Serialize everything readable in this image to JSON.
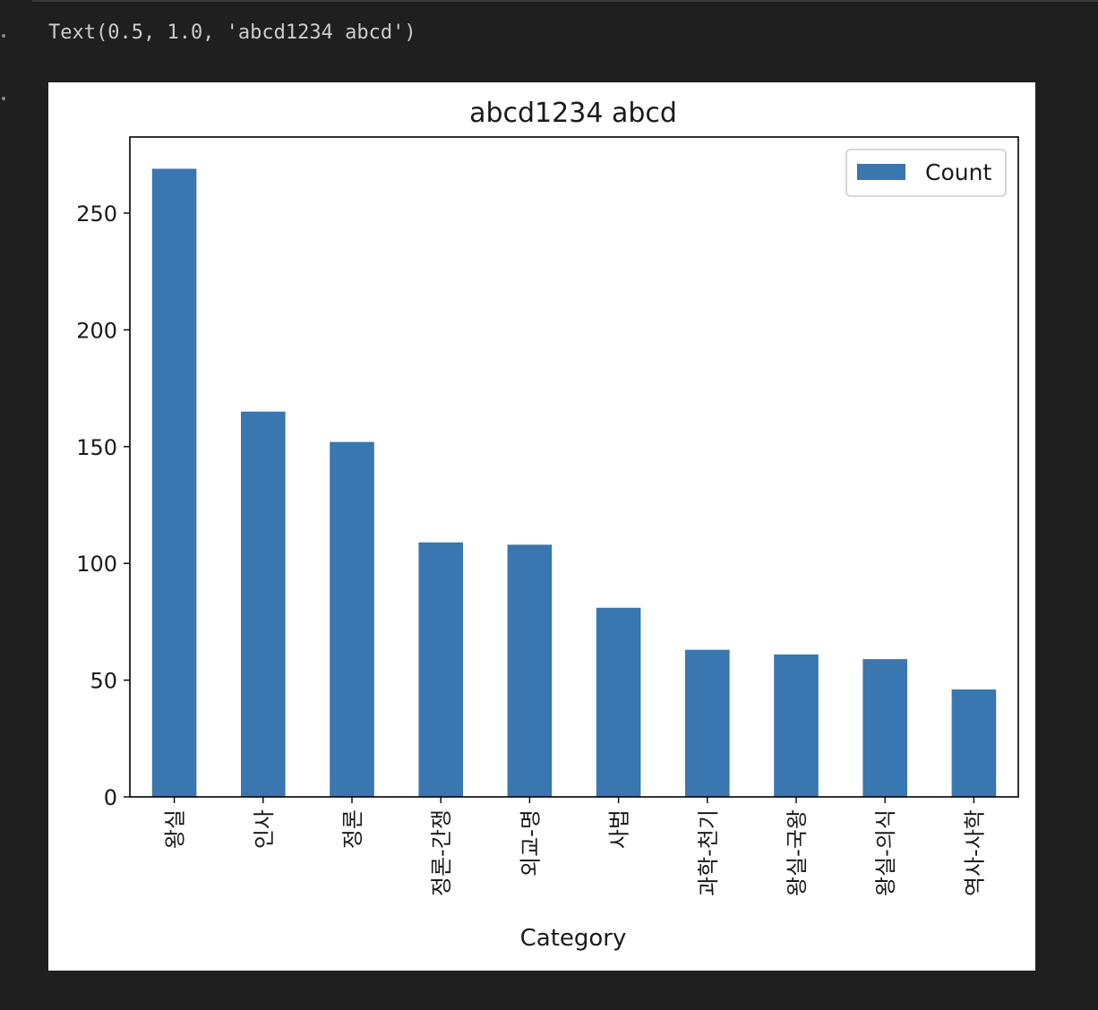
{
  "cell_output": {
    "text_repr": "Text(0.5, 1.0, 'abcd1234 abcd')"
  },
  "colors": {
    "bar": "#3a76b0",
    "axis": "#000000",
    "legend_border": "#cccccc",
    "cell_background": "#1f1f1f",
    "figure_background": "#ffffff"
  },
  "chart_data": {
    "type": "bar",
    "title": "abcd1234 abcd",
    "xlabel": "Category",
    "ylabel": "",
    "categories": [
      "왕실",
      "인사",
      "정론",
      "정론-간쟁",
      "외교-명",
      "사법",
      "과학-천기",
      "왕실-국왕",
      "왕실-의식",
      "역사-사학"
    ],
    "series": [
      {
        "name": "Count",
        "values": [
          269,
          165,
          152,
          109,
          108,
          81,
          63,
          61,
          59,
          46
        ]
      }
    ],
    "ylim": [
      0,
      282.6
    ],
    "yticks": [
      0,
      50,
      100,
      150,
      200,
      250
    ],
    "xtick_rotation": 90,
    "legend_position": "top-right",
    "grid": false
  }
}
